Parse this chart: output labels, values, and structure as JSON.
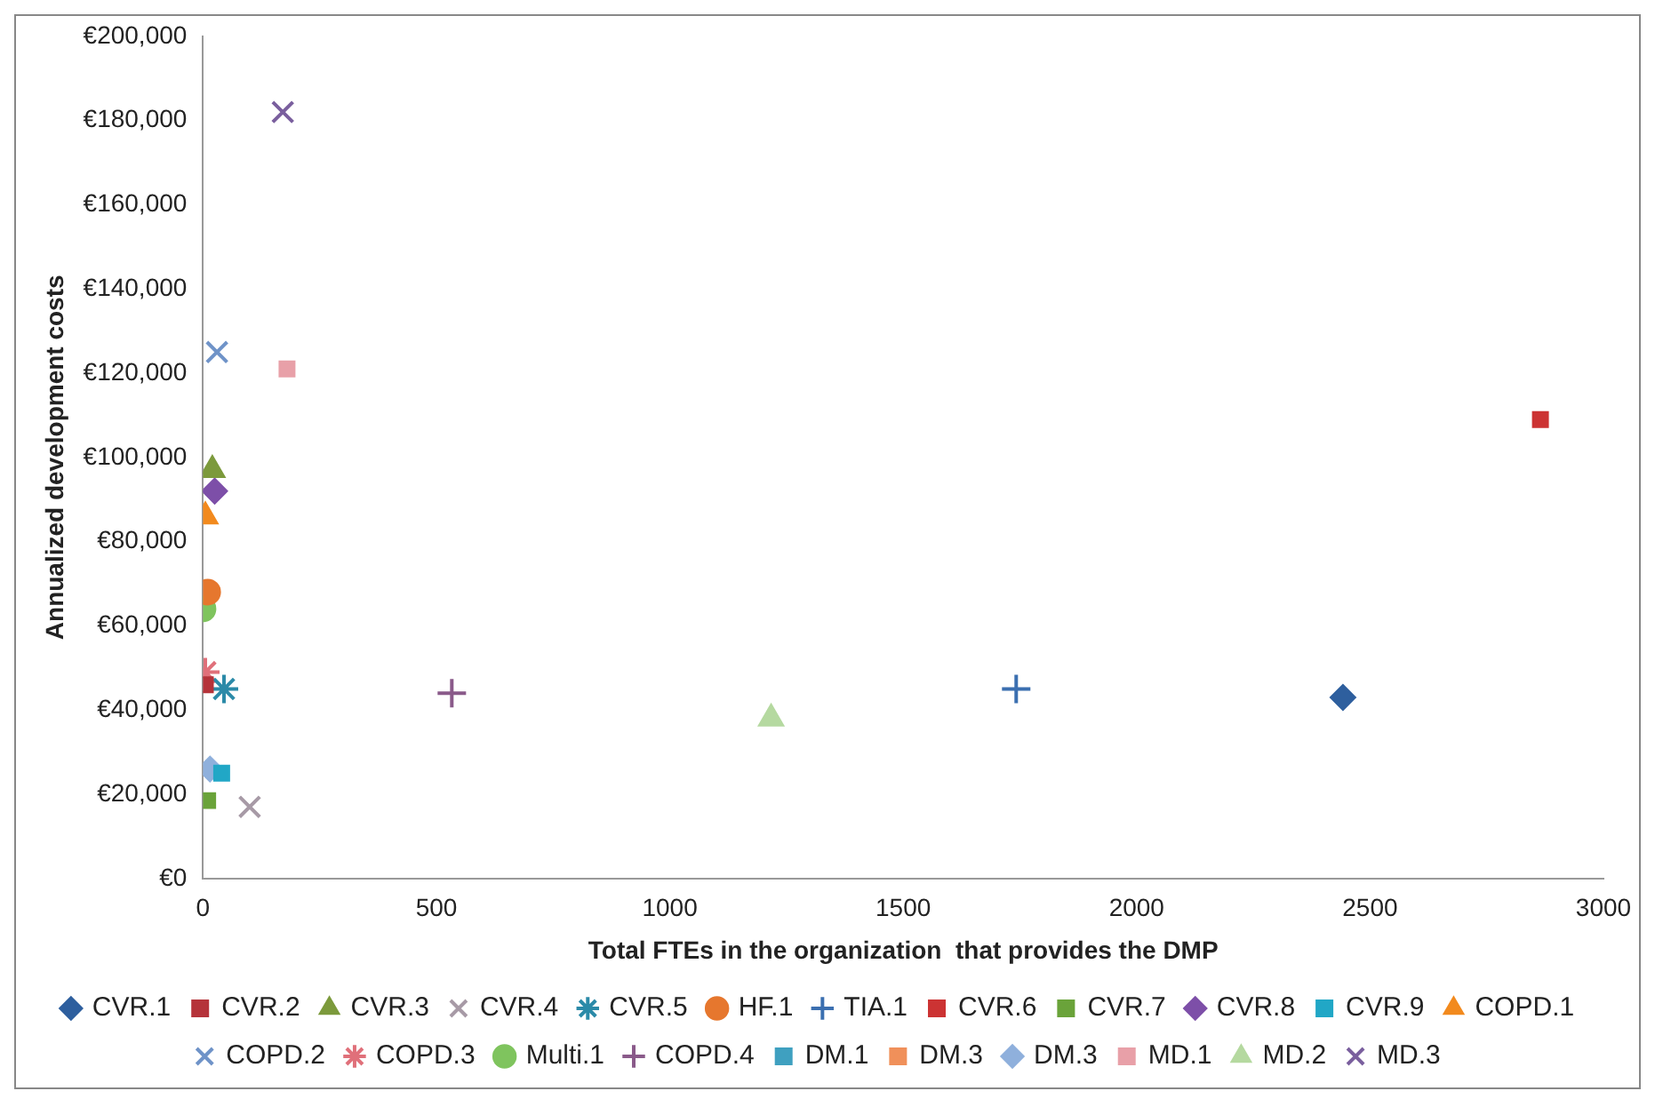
{
  "chart_data": {
    "type": "scatter",
    "xlabel": "Total FTEs in the organization  that provides the DMP",
    "ylabel": "Annualized development costs",
    "xlim": [
      0,
      3000
    ],
    "xticks": [
      0,
      500,
      1000,
      1500,
      2000,
      2500,
      3000
    ],
    "ylim": [
      0,
      200000
    ],
    "yticks": [
      {
        "value": 0,
        "label": "€0"
      },
      {
        "value": 20000,
        "label": "€20,000"
      },
      {
        "value": 40000,
        "label": "€40,000"
      },
      {
        "value": 60000,
        "label": "€60,000"
      },
      {
        "value": 80000,
        "label": "€80,000"
      },
      {
        "value": 100000,
        "label": "€100,000"
      },
      {
        "value": 120000,
        "label": "€120,000"
      },
      {
        "value": 140000,
        "label": "€140,000"
      },
      {
        "value": 160000,
        "label": "€160,000"
      },
      {
        "value": 180000,
        "label": "€180,000"
      },
      {
        "value": 200000,
        "label": "€200,000"
      }
    ],
    "grid": false,
    "legend": "bottom",
    "series": [
      {
        "name": "CVR.1",
        "color": "#2e5f9e",
        "marker": "diamond",
        "x": [
          2442
        ],
        "values": [
          43000
        ]
      },
      {
        "name": "CVR.2",
        "color": "#b5333a",
        "marker": "square",
        "x": [
          5
        ],
        "values": [
          46000
        ]
      },
      {
        "name": "CVR.3",
        "color": "#7c9a3c",
        "marker": "triangle",
        "x": [
          20
        ],
        "values": [
          97000
        ]
      },
      {
        "name": "CVR.4",
        "color": "#a79aa6",
        "marker": "x",
        "x": [
          100
        ],
        "values": [
          17000
        ]
      },
      {
        "name": "CVR.5",
        "color": "#2b8aa8",
        "marker": "cross",
        "x": [
          45
        ],
        "values": [
          45000
        ]
      },
      {
        "name": "HF.1",
        "color": "#e6772e",
        "marker": "circle",
        "x": [
          10
        ],
        "values": [
          68000
        ]
      },
      {
        "name": "TIA.1",
        "color": "#3b6fb0",
        "marker": "plus",
        "x": [
          1742
        ],
        "values": [
          45000
        ]
      },
      {
        "name": "CVR.6",
        "color": "#cc3333",
        "marker": "square",
        "x": [
          2865
        ],
        "values": [
          109000
        ]
      },
      {
        "name": "CVR.7",
        "color": "#6aa33a",
        "marker": "square",
        "x": [
          10
        ],
        "values": [
          18500
        ]
      },
      {
        "name": "CVR.8",
        "color": "#7d4fa8",
        "marker": "diamond",
        "x": [
          25
        ],
        "values": [
          92000
        ]
      },
      {
        "name": "CVR.9",
        "color": "#21a7c6",
        "marker": "square",
        "x": [
          40
        ],
        "values": [
          25000
        ]
      },
      {
        "name": "COPD.1",
        "color": "#f28a1e",
        "marker": "triangle",
        "x": [
          5
        ],
        "values": [
          86000
        ]
      },
      {
        "name": "COPD.2",
        "color": "#6f93c8",
        "marker": "x",
        "x": [
          30
        ],
        "values": [
          125000
        ]
      },
      {
        "name": "COPD.3",
        "color": "#e0707a",
        "marker": "cross",
        "x": [
          5
        ],
        "values": [
          49000
        ]
      },
      {
        "name": "Multi.1",
        "color": "#7fc45e",
        "marker": "circle",
        "x": [
          0
        ],
        "values": [
          64000
        ]
      },
      {
        "name": "COPD.4",
        "color": "#8a5a8a",
        "marker": "plus",
        "x": [
          533
        ],
        "values": [
          44000
        ]
      },
      {
        "name": "DM.1",
        "color": "#3fa0c0",
        "marker": "square",
        "x": [
          null
        ],
        "values": [
          null
        ]
      },
      {
        "name": "DM.3",
        "color": "#f0905a",
        "marker": "square",
        "x": [
          null
        ],
        "values": [
          null
        ]
      },
      {
        "name": "DM.3",
        "color": "#8fb0dc",
        "marker": "diamond",
        "x": [
          15
        ],
        "values": [
          26000
        ]
      },
      {
        "name": "MD.1",
        "color": "#e8a0a8",
        "marker": "square",
        "x": [
          180
        ],
        "values": [
          121000
        ]
      },
      {
        "name": "MD.2",
        "color": "#b5d9a0",
        "marker": "triangle",
        "x": [
          1217
        ],
        "values": [
          38000
        ]
      },
      {
        "name": "MD.3",
        "color": "#7a5f9e",
        "marker": "x",
        "x": [
          171
        ],
        "values": [
          182000
        ]
      }
    ]
  }
}
